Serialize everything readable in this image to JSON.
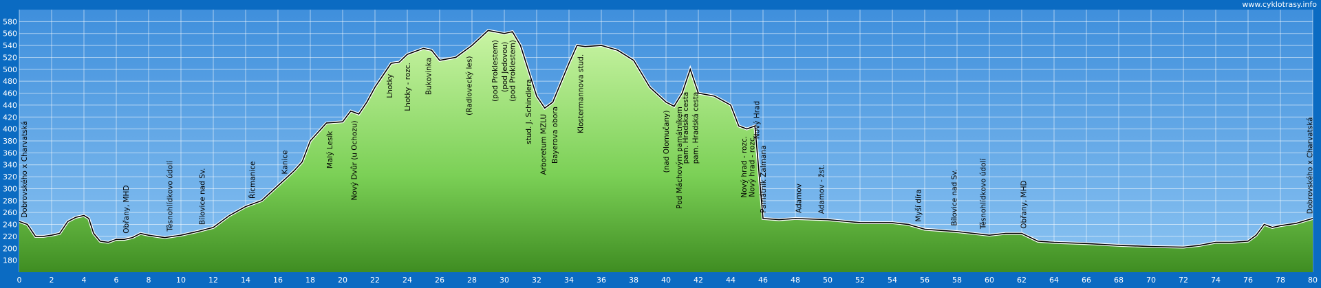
{
  "chart_data": {
    "type": "line",
    "watermark": "www.cyklotrasy.info",
    "x": [
      0,
      0.5,
      1,
      1.5,
      2,
      2.5,
      3,
      3.5,
      4,
      4.3,
      4.6,
      5,
      5.5,
      6,
      6.5,
      7,
      7.5,
      8,
      9,
      10,
      11,
      12,
      13,
      14,
      15,
      16,
      17,
      17.5,
      18,
      19,
      20,
      20.5,
      21,
      21.5,
      22,
      22.5,
      23,
      23.5,
      24,
      25,
      25.5,
      26,
      27,
      28,
      29,
      30,
      30.5,
      31,
      32,
      32.5,
      33,
      34,
      34.5,
      35,
      36,
      37,
      38,
      39,
      40,
      40.5,
      41,
      41.5,
      42,
      43,
      44,
      44.5,
      45,
      45.5,
      46,
      47,
      48,
      50,
      52,
      54,
      55,
      56,
      57,
      58,
      59,
      60,
      61,
      62,
      63,
      64,
      66,
      68,
      70,
      72,
      73,
      74,
      75,
      76,
      76.5,
      77,
      77.5,
      78,
      79,
      80
    ],
    "series": [
      {
        "color": "#000000",
        "fill": "#7bd056",
        "values": [
          245,
          240,
          220,
          220,
          222,
          225,
          245,
          252,
          255,
          250,
          225,
          212,
          210,
          215,
          215,
          218,
          225,
          222,
          218,
          222,
          228,
          235,
          255,
          270,
          280,
          305,
          330,
          345,
          380,
          410,
          412,
          430,
          425,
          445,
          470,
          490,
          510,
          512,
          525,
          535,
          532,
          515,
          520,
          540,
          565,
          560,
          563,
          540,
          455,
          435,
          445,
          510,
          540,
          538,
          540,
          532,
          515,
          470,
          445,
          438,
          460,
          500,
          460,
          455,
          440,
          405,
          400,
          405,
          250,
          248,
          250,
          248,
          243,
          243,
          240,
          232,
          230,
          228,
          225,
          222,
          225,
          225,
          212,
          210,
          208,
          205,
          203,
          202,
          205,
          210,
          210,
          212,
          222,
          240,
          235,
          238,
          242,
          250
        ]
      }
    ],
    "annotations": [
      {
        "text": "Dobrovského x Charvatská",
        "x": 0.3
      },
      {
        "text": "Obřany, MHD",
        "x": 6.6
      },
      {
        "text": "Těsnohlídkovo údolí",
        "x": 9.3
      },
      {
        "text": "Bílovice nad Sv.",
        "x": 11.3
      },
      {
        "text": "Řícmanice",
        "x": 14.4
      },
      {
        "text": "Kanice",
        "x": 16.4
      },
      {
        "text": "Malý Lesík",
        "x": 19.2
      },
      {
        "text": "Nový Dvůr (u Ochozu)",
        "x": 20.7
      },
      {
        "text": "Lhotky",
        "x": 22.9
      },
      {
        "text": "Lhotky - rozc.",
        "x": 24
      },
      {
        "text": "Bukovinka",
        "x": 25.3
      },
      {
        "text": "(Radlovecký les)",
        "x": 27.8
      },
      {
        "text": "(pod Proklestem)",
        "x": 29.4
      },
      {
        "text": "(pod Jedovou)",
        "x": 30
      },
      {
        "text": "(pod Proklestem)",
        "x": 30.5
      },
      {
        "text": "stud. J. Schindlera",
        "x": 31.5
      },
      {
        "text": "Arboretum MZLU",
        "x": 32.4
      },
      {
        "text": "Bayerova obora",
        "x": 33.1
      },
      {
        "text": "Klostermannova stud.",
        "x": 34.7
      },
      {
        "text": "(nad Olomučany)",
        "x": 40
      },
      {
        "text": "Pod Máchovým památníkem",
        "x": 40.8
      },
      {
        "text": "pam. Hradská cesta",
        "x": 41.2
      },
      {
        "text": "pam. Hradská cesta",
        "x": 41.8
      },
      {
        "text": "Nový hrad - rozc.",
        "x": 44.8
      },
      {
        "text": "Nový hrad - rozc.",
        "x": 45.3
      },
      {
        "text": "Nový Hrad",
        "x": 45.6
      },
      {
        "text": "Památník Žalmana",
        "x": 46
      },
      {
        "text": "Adamov",
        "x": 48.2
      },
      {
        "text": "Adamov - žst.",
        "x": 49.6
      },
      {
        "text": "Myší díra",
        "x": 55.6
      },
      {
        "text": "Bílovice nad Sv.",
        "x": 57.8
      },
      {
        "text": "Těsnohlídkovo údolí",
        "x": 59.6
      },
      {
        "text": "Obřany, MHD",
        "x": 62.1
      },
      {
        "text": "Dobrovského x Charvatská",
        "x": 79.8
      }
    ],
    "xlim": [
      0,
      80
    ],
    "xticks": [
      0,
      2,
      4,
      6,
      8,
      10,
      12,
      14,
      16,
      18,
      20,
      22,
      24,
      26,
      28,
      30,
      32,
      34,
      36,
      38,
      40,
      42,
      44,
      46,
      48,
      50,
      52,
      54,
      56,
      58,
      60,
      62,
      64,
      66,
      68,
      70,
      72,
      74,
      76,
      78,
      80
    ],
    "ylim": [
      160,
      600
    ],
    "yticks": [
      180,
      200,
      220,
      240,
      260,
      280,
      300,
      320,
      340,
      360,
      380,
      400,
      420,
      440,
      460,
      480,
      500,
      520,
      540,
      560,
      580
    ],
    "grid": true
  }
}
